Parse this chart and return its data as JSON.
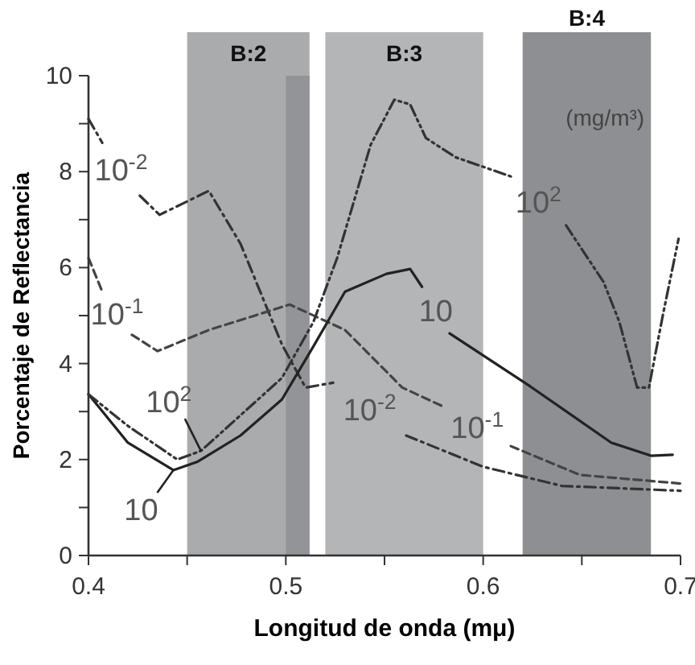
{
  "chart_data": {
    "type": "line",
    "xlabel": "Longitud de onda (mμ)",
    "ylabel": "Porcentaje de Reflectancia",
    "xlim": [
      0.4,
      0.7
    ],
    "xticks": [
      0.4,
      {
        "value": 0.45,
        "label": null
      },
      0.5,
      {
        "value": 0.55,
        "label": null
      },
      0.6,
      {
        "value": 0.65,
        "label": null
      },
      0.7
    ],
    "ylim": [
      0,
      10
    ],
    "yticks": [
      0,
      {
        "value": 1,
        "label": null
      },
      2,
      {
        "value": 3,
        "label": null
      },
      4,
      {
        "value": 5,
        "label": null
      },
      6,
      {
        "value": 7,
        "label": null
      },
      8,
      {
        "value": 9,
        "label": null
      },
      10
    ],
    "grid": false,
    "bands": [
      {
        "axis": "x",
        "from": 0.45,
        "to": 0.512,
        "label": "B:2",
        "color": "#aaabad"
      },
      {
        "axis": "x",
        "from": 0.5,
        "to": 0.512,
        "color": "#939497"
      },
      {
        "axis": "x",
        "from": 0.52,
        "to": 0.6,
        "label": "B:3",
        "color": "#b4b5b7"
      },
      {
        "axis": "x",
        "from": 0.62,
        "to": 0.685,
        "label": "B:4",
        "color": "#8e8f92"
      }
    ],
    "annotations": [
      "(mg/m³)",
      {
        "text": "10$^{2}$",
        "x": 0.457,
        "y": 2.18
      },
      {
        "text": "10",
        "x": 0.443,
        "y": 1.78
      },
      {
        "text": "10$^{-2}$",
        "x": 0.426,
        "y": 7.5
      },
      {
        "text": "10$^{-1}$",
        "x": 0.422,
        "y": 4.6
      },
      {
        "text": "10",
        "x": 0.583,
        "y": 4.63
      },
      {
        "text": "10$^{-2}$",
        "x": 0.561,
        "y": 2.5
      },
      {
        "text": "10$^{-1}$",
        "x": 0.614,
        "y": 2.28
      },
      {
        "text": "10$^{2}$",
        "x": 0.642,
        "y": 6.88
      }
    ],
    "series": [
      {
        "color": "#333333",
        "line_style": "dashdot",
        "x": [
          0.4,
          0.407,
          0.416,
          0.426,
          0.436,
          0.461,
          0.477,
          0.498,
          0.51,
          0.524,
          0.542,
          0.561,
          0.6,
          0.64,
          0.7
        ],
        "values": [
          9.1,
          8.6,
          null,
          7.5,
          7.1,
          7.6,
          6.5,
          4.4,
          3.5,
          3.6,
          null,
          2.5,
          1.85,
          1.45,
          1.35
        ]
      },
      {
        "color": "#444444",
        "line_style": "dashed",
        "x": [
          0.4,
          0.407,
          0.414,
          0.422,
          0.435,
          0.461,
          0.502,
          0.53,
          0.559,
          0.58,
          0.597,
          0.614,
          0.649,
          0.7
        ],
        "values": [
          6.2,
          5.5,
          null,
          4.6,
          4.26,
          4.7,
          5.23,
          4.7,
          3.5,
          3.1,
          null,
          2.28,
          1.68,
          1.5
        ]
      },
      {
        "color": "#222222",
        "line_style": "solid",
        "x": [
          0.4,
          0.42,
          0.443,
          0.455,
          0.477,
          0.498,
          0.514,
          0.53,
          0.551,
          0.563,
          0.569,
          0.576,
          0.583,
          0.624,
          0.665,
          0.685,
          0.696
        ],
        "values": [
          3.36,
          2.35,
          1.78,
          1.95,
          2.5,
          3.25,
          4.36,
          5.5,
          5.87,
          5.97,
          5.6,
          null,
          4.63,
          3.52,
          2.35,
          2.08,
          2.1
        ]
      },
      {
        "color": "#333333",
        "line_style": "dashdotdot",
        "x": [
          0.4,
          0.42,
          0.445,
          0.457,
          0.498,
          0.514,
          0.526,
          0.543,
          0.555,
          0.563,
          0.571,
          0.586,
          0.614,
          0.628,
          0.642,
          0.661,
          0.669,
          0.678,
          0.684,
          0.691,
          0.699
        ],
        "values": [
          3.36,
          2.7,
          2.0,
          2.18,
          3.7,
          4.87,
          6.2,
          8.56,
          9.5,
          9.4,
          8.7,
          8.3,
          7.9,
          null,
          6.88,
          5.7,
          4.87,
          3.5,
          3.5,
          5.0,
          6.6
        ]
      }
    ]
  }
}
